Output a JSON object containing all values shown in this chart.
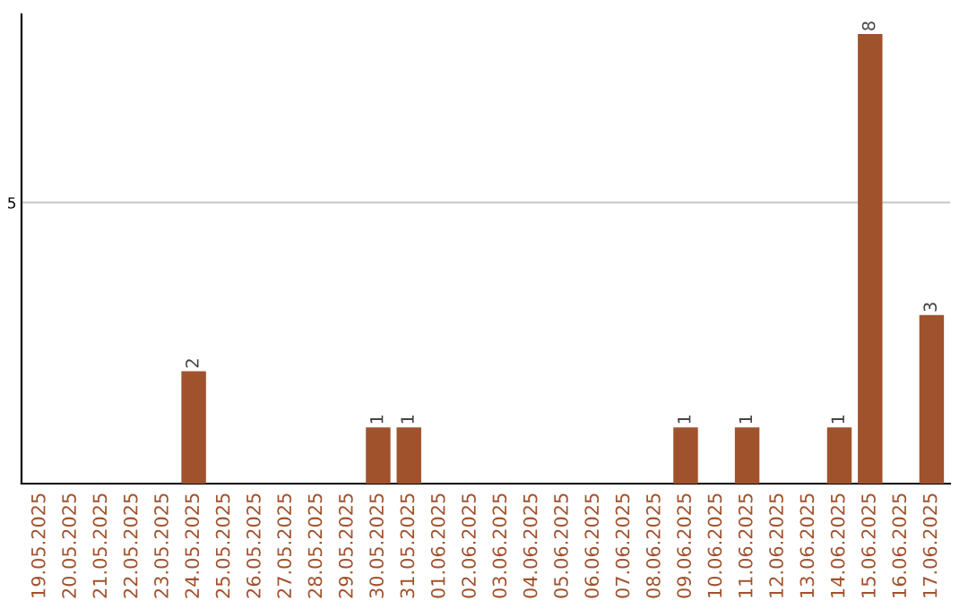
{
  "chart_data": {
    "type": "bar",
    "categories": [
      "19.05.2025",
      "20.05.2025",
      "21.05.2025",
      "22.05.2025",
      "23.05.2025",
      "24.05.2025",
      "25.05.2025",
      "26.05.2025",
      "27.05.2025",
      "28.05.2025",
      "29.05.2025",
      "30.05.2025",
      "31.05.2025",
      "01.06.2025",
      "02.06.2025",
      "03.06.2025",
      "04.06.2025",
      "05.06.2025",
      "06.06.2025",
      "07.06.2025",
      "08.06.2025",
      "09.06.2025",
      "10.06.2025",
      "11.06.2025",
      "12.06.2025",
      "13.06.2025",
      "14.06.2025",
      "15.06.2025",
      "16.06.2025",
      "17.06.2025"
    ],
    "values": [
      0,
      0,
      0,
      0,
      0,
      2,
      0,
      0,
      0,
      0,
      0,
      1,
      1,
      0,
      0,
      0,
      0,
      0,
      0,
      0,
      0,
      1,
      0,
      1,
      0,
      0,
      1,
      8,
      0,
      3
    ],
    "value_labels": [
      null,
      null,
      null,
      null,
      null,
      "2",
      null,
      null,
      null,
      null,
      null,
      "1",
      "1",
      null,
      null,
      null,
      null,
      null,
      null,
      null,
      null,
      "1",
      null,
      "1",
      null,
      null,
      "1",
      "8",
      null,
      "3"
    ],
    "color": "#a0522d",
    "ylim": [
      0,
      8.35
    ],
    "yticks": [
      5
    ],
    "grid": "y"
  }
}
